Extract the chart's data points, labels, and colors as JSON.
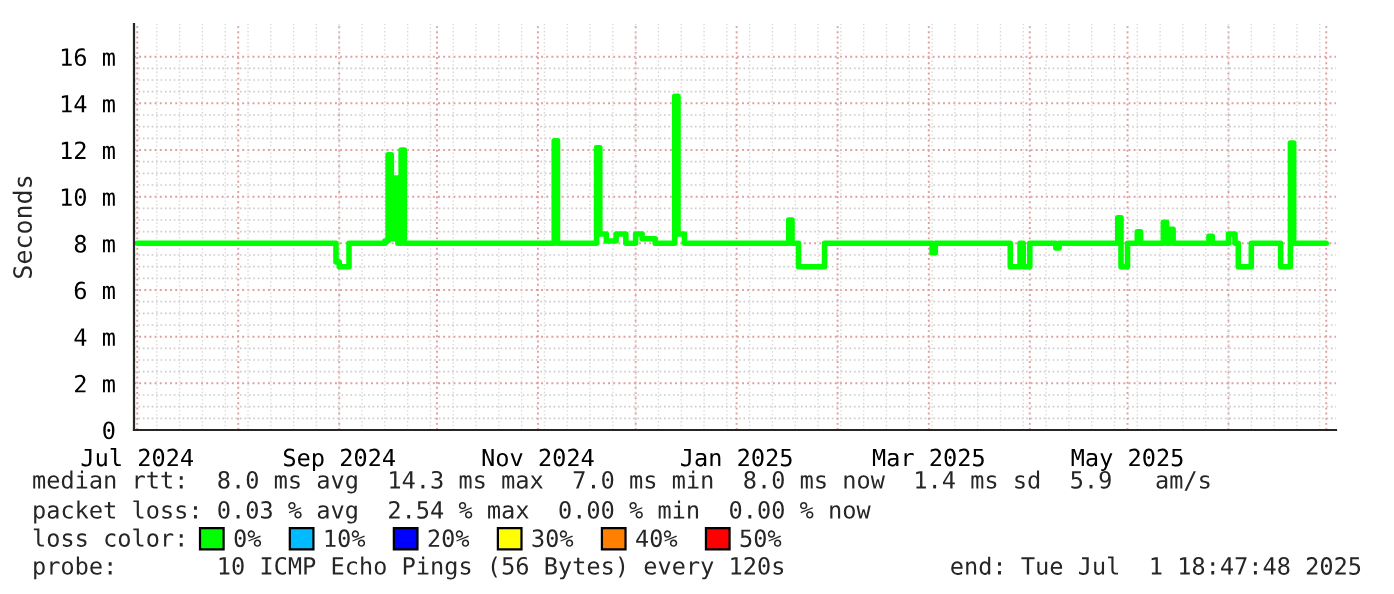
{
  "chart_data": {
    "type": "step",
    "ylabel": "Seconds",
    "legend_title": "loss color:",
    "legend": "bottom",
    "grid": true,
    "xlim": [
      "2024-06-30",
      "2025-07-04"
    ],
    "ylim": [
      0,
      17.4
    ],
    "yticks": [
      0,
      {
        "value": 2,
        "label": "2 m"
      },
      {
        "value": 4,
        "label": "4 m"
      },
      {
        "value": 6,
        "label": "6 m"
      },
      {
        "value": 8,
        "label": "8 m"
      },
      {
        "value": 10,
        "label": "10 m"
      },
      {
        "value": 12,
        "label": "12 m"
      },
      {
        "value": 14,
        "label": "14 m"
      },
      {
        "value": 16,
        "label": "16 m"
      }
    ],
    "xticks": [
      {
        "value": "2024-07-01",
        "label": "Jul 2024"
      },
      {
        "value": "2024-08-01",
        "label": null
      },
      {
        "value": "2024-09-01",
        "label": "Sep 2024"
      },
      {
        "value": "2024-10-01",
        "label": null
      },
      {
        "value": "2024-11-01",
        "label": "Nov 2024"
      },
      {
        "value": "2024-12-01",
        "label": null
      },
      {
        "value": "2025-01-01",
        "label": "Jan 2025"
      },
      {
        "value": "2025-02-01",
        "label": null
      },
      {
        "value": "2025-03-01",
        "label": "Mar 2025"
      },
      {
        "value": "2025-04-01",
        "label": null
      },
      {
        "value": "2025-05-01",
        "label": "May 2025"
      },
      {
        "value": "2025-06-01",
        "label": null
      },
      {
        "value": "2025-07-01",
        "label": null
      }
    ],
    "x": [
      "2024-07-01",
      "2024-08-30",
      "2024-08-31",
      "2024-09-01",
      "2024-09-03",
      "2024-09-04",
      "2024-09-15",
      "2024-09-16",
      "2024-09-17",
      "2024-09-18",
      "2024-09-19",
      "2024-09-20",
      "2024-09-21",
      "2024-11-05",
      "2024-11-06",
      "2024-11-07",
      "2024-11-18",
      "2024-11-19",
      "2024-11-20",
      "2024-11-22",
      "2024-11-25",
      "2024-11-28",
      "2024-12-01",
      "2024-12-03",
      "2024-12-07",
      "2024-12-12",
      "2024-12-13",
      "2024-12-14",
      "2024-12-16",
      "2025-01-16",
      "2025-01-17",
      "2025-01-18",
      "2025-01-20",
      "2025-01-27",
      "2025-01-28",
      "2025-03-01",
      "2025-03-02",
      "2025-03-03",
      "2025-03-25",
      "2025-03-26",
      "2025-03-29",
      "2025-03-30",
      "2025-04-01",
      "2025-04-09",
      "2025-04-10",
      "2025-04-27",
      "2025-04-28",
      "2025-04-29",
      "2025-04-30",
      "2025-05-01",
      "2025-05-04",
      "2025-05-05",
      "2025-05-12",
      "2025-05-13",
      "2025-05-14",
      "2025-05-15",
      "2025-05-26",
      "2025-05-27",
      "2025-06-01",
      "2025-06-03",
      "2025-06-04",
      "2025-06-07",
      "2025-06-08",
      "2025-06-16",
      "2025-06-17",
      "2025-06-19",
      "2025-06-20",
      "2025-06-21",
      "2025-07-01"
    ],
    "series": [
      {
        "name": "0%",
        "color": "#00ff00",
        "values": [
          8.0,
          8.0,
          7.2,
          7.0,
          7.0,
          8.0,
          8.1,
          11.8,
          8.2,
          10.8,
          8.0,
          12.0,
          8.0,
          8.0,
          12.4,
          8.0,
          8.0,
          12.1,
          8.4,
          8.1,
          8.4,
          8.0,
          8.4,
          8.2,
          8.0,
          8.0,
          14.3,
          8.4,
          8.0,
          8.0,
          9.0,
          8.0,
          7.0,
          7.0,
          8.0,
          8.0,
          7.6,
          8.0,
          8.0,
          7.0,
          8.0,
          7.0,
          8.0,
          7.8,
          8.0,
          8.0,
          9.1,
          7.0,
          7.0,
          8.0,
          8.5,
          8.0,
          8.9,
          8.0,
          8.6,
          8.0,
          8.3,
          8.0,
          8.4,
          8.0,
          7.0,
          7.0,
          8.0,
          8.0,
          7.0,
          7.0,
          12.3,
          8.0,
          8.0
        ]
      },
      {
        "name": "10%",
        "color": "#00bbff",
        "values": [
          null,
          null,
          null,
          null,
          null,
          null,
          null,
          null,
          null,
          null,
          null,
          null,
          null,
          null,
          null,
          null,
          null,
          null,
          null,
          null,
          null,
          null,
          null,
          null,
          null,
          null,
          null,
          null,
          null,
          null,
          null,
          null,
          null,
          null,
          null,
          null,
          null,
          null,
          null,
          null,
          null,
          null,
          null,
          null,
          null,
          null,
          null,
          null,
          null,
          null,
          null,
          null,
          null,
          null,
          null,
          null,
          null,
          null,
          null,
          null,
          null,
          null,
          null,
          null,
          null,
          null,
          null,
          null,
          null
        ]
      },
      {
        "name": "20%",
        "color": "#0000ff",
        "values": [
          null,
          null,
          null,
          null,
          null,
          null,
          null,
          null,
          null,
          null,
          null,
          null,
          null,
          null,
          null,
          null,
          null,
          null,
          null,
          null,
          null,
          null,
          null,
          null,
          null,
          null,
          null,
          null,
          null,
          null,
          null,
          null,
          null,
          null,
          null,
          null,
          null,
          null,
          null,
          null,
          null,
          null,
          null,
          null,
          null,
          null,
          null,
          null,
          null,
          null,
          null,
          null,
          null,
          null,
          null,
          null,
          null,
          null,
          null,
          null,
          null,
          null,
          null,
          null,
          null,
          null,
          null,
          null,
          null
        ]
      },
      {
        "name": "30%",
        "color": "#ffff00",
        "values": [
          null,
          null,
          null,
          null,
          null,
          null,
          null,
          null,
          null,
          null,
          null,
          null,
          null,
          null,
          null,
          null,
          null,
          null,
          null,
          null,
          null,
          null,
          null,
          null,
          null,
          null,
          null,
          null,
          null,
          null,
          null,
          null,
          null,
          null,
          null,
          null,
          null,
          null,
          null,
          null,
          null,
          null,
          null,
          null,
          null,
          null,
          null,
          null,
          null,
          null,
          null,
          null,
          null,
          null,
          null,
          null,
          null,
          null,
          null,
          null,
          null,
          null,
          null,
          null,
          null,
          null,
          null,
          null,
          null
        ]
      },
      {
        "name": "40%",
        "color": "#ff8000",
        "values": [
          null,
          null,
          null,
          null,
          null,
          null,
          null,
          null,
          null,
          null,
          null,
          null,
          null,
          null,
          null,
          null,
          null,
          null,
          null,
          null,
          null,
          null,
          null,
          null,
          null,
          null,
          null,
          null,
          null,
          null,
          null,
          null,
          null,
          null,
          null,
          null,
          null,
          null,
          null,
          null,
          null,
          null,
          null,
          null,
          null,
          null,
          null,
          null,
          null,
          null,
          null,
          null,
          null,
          null,
          null,
          null,
          null,
          null,
          null,
          null,
          null,
          null,
          null,
          null,
          null,
          null,
          null,
          null,
          null
        ]
      },
      {
        "name": "50%",
        "color": "#ff0000",
        "values": [
          null,
          null,
          null,
          null,
          null,
          null,
          null,
          null,
          null,
          null,
          null,
          null,
          null,
          null,
          null,
          null,
          null,
          null,
          null,
          null,
          null,
          null,
          null,
          null,
          null,
          null,
          null,
          null,
          null,
          null,
          null,
          null,
          null,
          null,
          null,
          null,
          null,
          null,
          null,
          null,
          null,
          null,
          null,
          null,
          null,
          null,
          null,
          null,
          null,
          null,
          null,
          null,
          null,
          null,
          null,
          null,
          null,
          null,
          null,
          null,
          null,
          null,
          null,
          null,
          null,
          null,
          null,
          null,
          null
        ]
      }
    ],
    "annotations": [
      "median rtt:  8.0 ms avg  14.3 ms max  7.0 ms min  8.0 ms now  1.4 ms sd  5.9   am/s",
      "packet loss: 0.03 % avg  2.54 % max  0.00 % min  0.00 % now",
      "probe:       10 ICMP Echo Pings (56 Bytes) every 120s",
      "end: Tue Jul  1 18:47:48 2025"
    ]
  }
}
